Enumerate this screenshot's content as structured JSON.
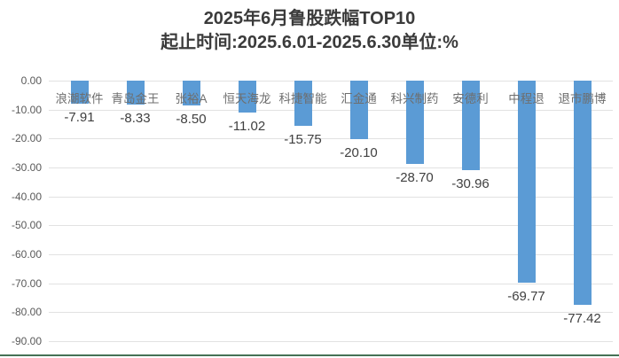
{
  "header": {
    "title": "2025年6月鲁股跌幅TOP10",
    "subtitle": "起止时间:2025.6.01-2025.6.30单位:%"
  },
  "chart_data": {
    "type": "bar",
    "title": "2025年6月鲁股跌幅TOP10",
    "subtitle": "起止时间:2025.6.01-2025.6.30单位:%",
    "unit": "%",
    "categories": [
      "浪潮软件",
      "青岛金王",
      "张裕A",
      "恒天海龙",
      "科捷智能",
      "汇金通",
      "科兴制药",
      "安德利",
      "中程退",
      "退市鹏博"
    ],
    "values": [
      -7.91,
      -8.33,
      -8.5,
      -11.02,
      -15.75,
      -20.1,
      -28.7,
      -30.96,
      -69.77,
      -77.42
    ],
    "value_labels": [
      "-7.91",
      "-8.33",
      "-8.50",
      "-11.02",
      "-15.75",
      "-20.10",
      "-28.70",
      "-30.96",
      "-69.77",
      "-77.42"
    ],
    "yticks": [
      0,
      -10,
      -20,
      -30,
      -40,
      -50,
      -60,
      -70,
      -80,
      -90
    ],
    "ytick_labels": [
      "0.00",
      "-10.00",
      "-20.00",
      "-30.00",
      "-40.00",
      "-50.00",
      "-60.00",
      "-70.00",
      "-80.00",
      "-90.00"
    ],
    "ylim": [
      -90,
      0
    ],
    "grid": true,
    "legend": false,
    "xlabel": "",
    "ylabel": ""
  },
  "colors": {
    "bar": "#5B9BD5",
    "gridline": "#E2E2E2",
    "axis_label": "#595959",
    "category_label": "#6E6E6E",
    "value_label": "#404040",
    "title": "#3B3B3B",
    "bottom_rule": "#457155",
    "background": "#FFFFFF"
  }
}
